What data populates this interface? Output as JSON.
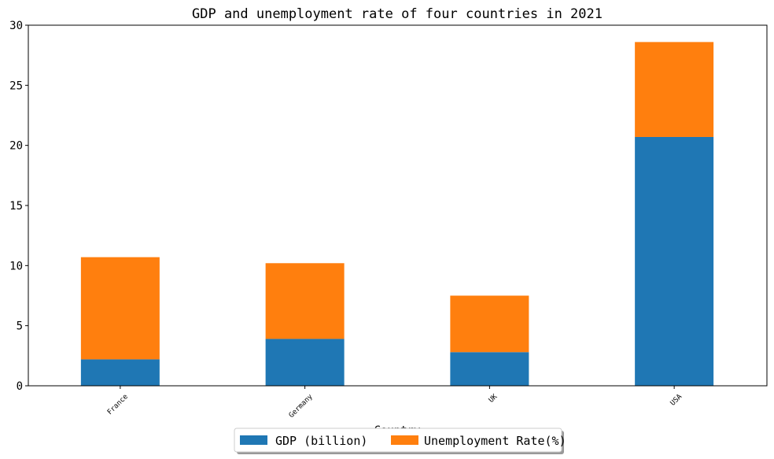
{
  "chart_data": {
    "type": "bar",
    "stacked": true,
    "title": "GDP and unemployment rate of four countries in 2021",
    "xlabel": "Country",
    "ylabel": "",
    "categories": [
      "France",
      "Germany",
      "UK",
      "USA"
    ],
    "series": [
      {
        "name": "GDP (billion)",
        "color": "#1f77b4",
        "values": [
          2.2,
          3.9,
          2.8,
          20.7
        ]
      },
      {
        "name": "Unemployment Rate(%)",
        "color": "#ff7f0e",
        "values": [
          8.5,
          6.3,
          4.7,
          7.9
        ]
      }
    ],
    "ylim": [
      0,
      30
    ],
    "yticks": [
      0,
      5,
      10,
      15,
      20,
      25,
      30
    ],
    "legend": "bottom-center",
    "grid": false
  }
}
